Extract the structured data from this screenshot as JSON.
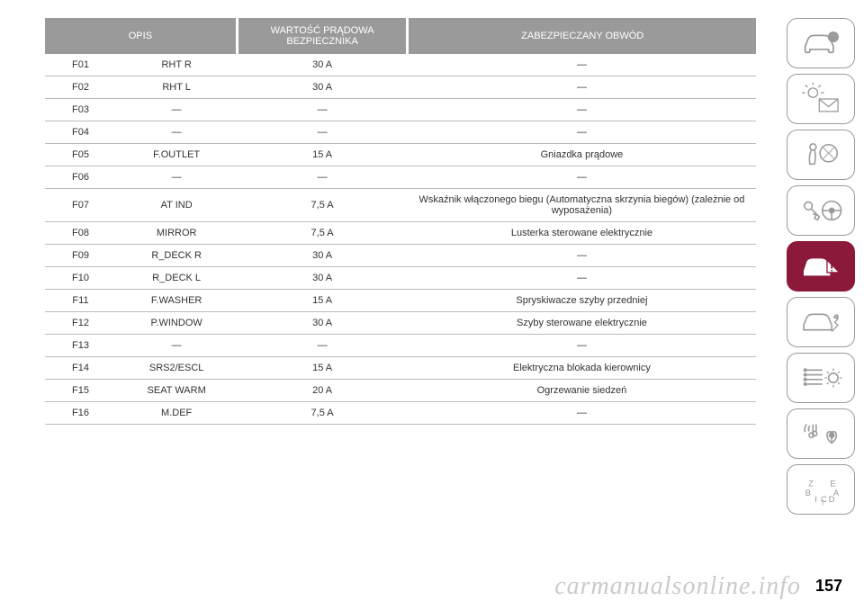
{
  "table": {
    "headers": {
      "opis": "OPIS",
      "wartosc": "WARTOŚĆ PRĄDOWA\nBEZPIECZNIKA",
      "obwod": "ZABEZPIECZANY OBWÓD"
    },
    "rows": [
      {
        "id": "F01",
        "label": "RHT R",
        "amp": "30 A",
        "circuit": "—"
      },
      {
        "id": "F02",
        "label": "RHT L",
        "amp": "30 A",
        "circuit": "—"
      },
      {
        "id": "F03",
        "label": "—",
        "amp": "—",
        "circuit": "—"
      },
      {
        "id": "F04",
        "label": "—",
        "amp": "—",
        "circuit": "—"
      },
      {
        "id": "F05",
        "label": "F.OUTLET",
        "amp": "15 A",
        "circuit": "Gniazdka prądowe"
      },
      {
        "id": "F06",
        "label": "—",
        "amp": "—",
        "circuit": "—"
      },
      {
        "id": "F07",
        "label": "AT IND",
        "amp": "7,5 A",
        "circuit": "Wskaźnik włączonego biegu (Automatyczna skrzynia biegów) (zależnie od wyposażenia)"
      },
      {
        "id": "F08",
        "label": "MIRROR",
        "amp": "7,5 A",
        "circuit": "Lusterka sterowane elektrycznie"
      },
      {
        "id": "F09",
        "label": "R_DECK R",
        "amp": "30 A",
        "circuit": "—"
      },
      {
        "id": "F10",
        "label": "R_DECK L",
        "amp": "30 A",
        "circuit": "—"
      },
      {
        "id": "F11",
        "label": "F.WASHER",
        "amp": "15 A",
        "circuit": "Spryskiwacze szyby przedniej"
      },
      {
        "id": "F12",
        "label": "P.WINDOW",
        "amp": "30 A",
        "circuit": "Szyby sterowane elektrycznie"
      },
      {
        "id": "F13",
        "label": "—",
        "amp": "—",
        "circuit": "—"
      },
      {
        "id": "F14",
        "label": "SRS2/ESCL",
        "amp": "15 A",
        "circuit": "Elektryczna blokada kierownicy"
      },
      {
        "id": "F15",
        "label": "SEAT WARM",
        "amp": "20 A",
        "circuit": "Ogrzewanie siedzeń"
      },
      {
        "id": "F16",
        "label": "M.DEF",
        "amp": "7,5 A",
        "circuit": "—"
      }
    ],
    "header_bg": "#9a9a9a",
    "header_fg": "#ffffff",
    "row_border": "#bcbcbc",
    "font_size_body": 11
  },
  "sidebar": {
    "icons": [
      {
        "name": "car-info-icon",
        "active": false
      },
      {
        "name": "light-mail-icon",
        "active": false
      },
      {
        "name": "airbag-icon",
        "active": false
      },
      {
        "name": "key-wheel-icon",
        "active": false
      },
      {
        "name": "car-warning-icon",
        "active": true
      },
      {
        "name": "car-service-icon",
        "active": false
      },
      {
        "name": "list-gear-icon",
        "active": false
      },
      {
        "name": "media-nav-icon",
        "active": false
      },
      {
        "name": "index-icon",
        "active": false
      }
    ],
    "active_bg": "#8b1a3a",
    "inactive_stroke": "#9a9a9a"
  },
  "page_number": "157",
  "watermark": "carmanualsonline.info"
}
